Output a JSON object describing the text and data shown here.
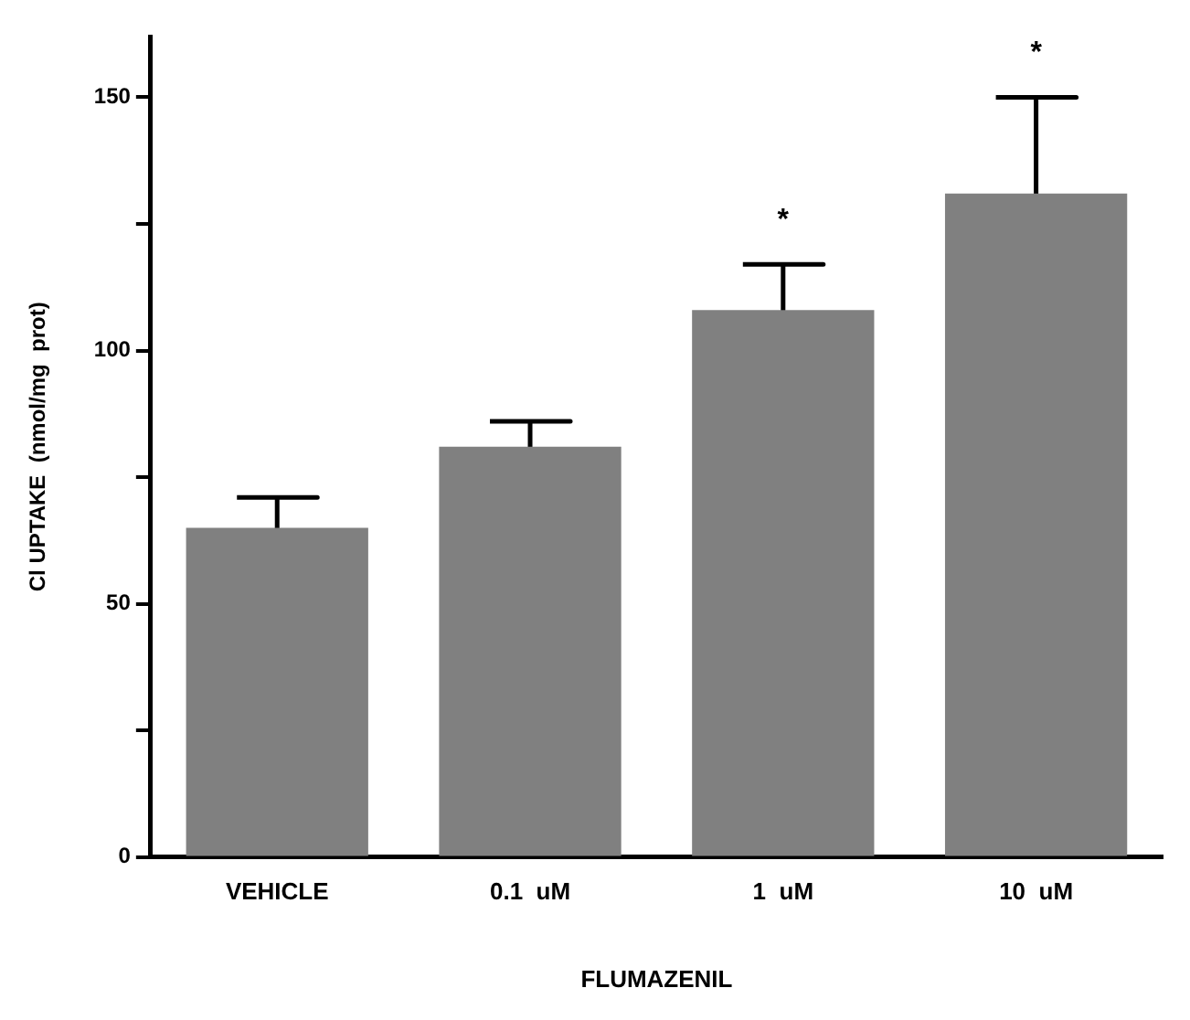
{
  "chart_data": {
    "type": "bar",
    "xlabel": "FLUMAZENIL",
    "ylabel": "Cl UPTAKE  (nmol/mg  prot)",
    "categories": [
      "VEHICLE",
      "0.1  uM",
      "1  uM",
      "10  uM"
    ],
    "values": [
      65,
      81,
      108,
      131
    ],
    "errors": [
      6,
      5,
      9,
      19
    ],
    "color": "#808080",
    "ylim": [
      0,
      162
    ],
    "yticks": [
      0,
      {
        "value": 25,
        "label": null
      },
      50,
      {
        "value": 75,
        "label": null
      },
      100,
      {
        "value": 125,
        "label": null
      },
      150
    ],
    "grid": false,
    "legend": false,
    "annotations": [
      {
        "text": "*",
        "x": "1  uM",
        "y": 117
      },
      {
        "text": "*",
        "x": "10  uM",
        "y": 150
      }
    ]
  }
}
